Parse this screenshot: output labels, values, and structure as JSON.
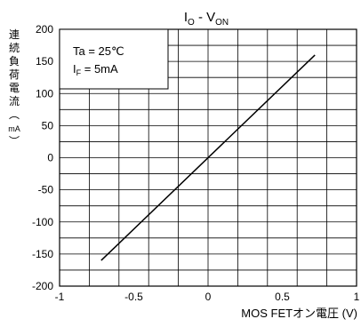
{
  "chart_data": {
    "type": "line",
    "title_main": "I",
    "title_main_sub": "O",
    "title_sep": " - V",
    "title_sep_sub": "ON",
    "xlabel": "MOS FETオン電圧 (V)",
    "ylabel_chars": [
      "連",
      "続",
      "負",
      "荷",
      "電",
      "流",
      "︵",
      "mA",
      "︶"
    ],
    "xlim": [
      -1,
      1
    ],
    "ylim": [
      -200,
      200
    ],
    "x_ticks": [
      "-1",
      "-0.5",
      "0",
      "0.5",
      "1"
    ],
    "y_ticks": [
      "200",
      "150",
      "100",
      "50",
      "0",
      "-50",
      "-100",
      "-150",
      "-200"
    ],
    "grid": true,
    "series": [
      {
        "x": [
          -0.72,
          0.72
        ],
        "y": [
          -160,
          160
        ]
      }
    ],
    "legend_box": {
      "line1": "Ta = 25℃",
      "line2_main": "I",
      "line2_sub": "F",
      "line2_tail": " = 5mA",
      "placement": "top-left"
    }
  }
}
